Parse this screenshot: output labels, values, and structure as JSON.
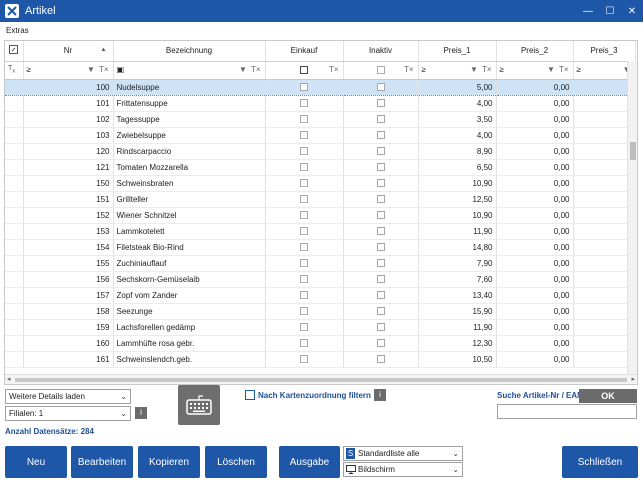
{
  "window": {
    "title": "Artikel"
  },
  "menu": {
    "extras": "Extras"
  },
  "columns": {
    "nr": "Nr",
    "bezeichnung": "Bezeichnung",
    "einkauf": "Einkauf",
    "inaktiv": "Inaktiv",
    "preis1": "Preis_1",
    "preis2": "Preis_2",
    "preis3": "Preis_3"
  },
  "filter": {
    "ge": "≥"
  },
  "rows": [
    {
      "nr": "100",
      "bez": "Nudelsuppe",
      "p1": "5,00",
      "p2": "0,00"
    },
    {
      "nr": "101",
      "bez": "Frittatensuppe",
      "p1": "4,00",
      "p2": "0,00"
    },
    {
      "nr": "102",
      "bez": "Tagessuppe",
      "p1": "3,50",
      "p2": "0,00"
    },
    {
      "nr": "103",
      "bez": "Zwiebelsuppe",
      "p1": "4,00",
      "p2": "0,00"
    },
    {
      "nr": "120",
      "bez": "Rindscarpaccio",
      "p1": "8,90",
      "p2": "0,00"
    },
    {
      "nr": "121",
      "bez": "Tomaten Mozzarella",
      "p1": "6,50",
      "p2": "0,00"
    },
    {
      "nr": "150",
      "bez": "Schweinsbraten",
      "p1": "10,90",
      "p2": "0,00"
    },
    {
      "nr": "151",
      "bez": "Grillteller",
      "p1": "12,50",
      "p2": "0,00"
    },
    {
      "nr": "152",
      "bez": "Wiener Schnitzel",
      "p1": "10,90",
      "p2": "0,00"
    },
    {
      "nr": "153",
      "bez": "Lammkotelett",
      "p1": "11,90",
      "p2": "0,00"
    },
    {
      "nr": "154",
      "bez": "Filetsteak Bio-Rind",
      "p1": "14,80",
      "p2": "0,00"
    },
    {
      "nr": "155",
      "bez": "Zuchiniauflauf",
      "p1": "7,90",
      "p2": "0,00"
    },
    {
      "nr": "156",
      "bez": "Sechskorn-Gemüselaib",
      "p1": "7,60",
      "p2": "0,00"
    },
    {
      "nr": "157",
      "bez": "Zopf vom Zander",
      "p1": "13,40",
      "p2": "0,00"
    },
    {
      "nr": "158",
      "bez": "Seezunge",
      "p1": "15,90",
      "p2": "0,00"
    },
    {
      "nr": "159",
      "bez": "Lachsforellen gedämp",
      "p1": "11,90",
      "p2": "0,00"
    },
    {
      "nr": "160",
      "bez": "Lammhüfte rosa gebr.",
      "p1": "12,30",
      "p2": "0,00"
    },
    {
      "nr": "161",
      "bez": "Schweinslendch.geb.",
      "p1": "10,50",
      "p2": "0,00"
    }
  ],
  "bottom": {
    "details_select": "Weitere Details laden",
    "filialen_select": "Filialen: 1",
    "info": "i",
    "anzahl": "Anzahl Datensätze: 284",
    "karten_filter": "Nach Kartenzuordnung filtern",
    "suche_label": "Suche Artikel-Nr / EAN",
    "ok": "OK",
    "liste_select": "Standardliste alle",
    "ausgabe_ziel": "Bildschirm"
  },
  "buttons": {
    "neu": "Neu",
    "bearbeiten": "Bearbeiten",
    "kopieren": "Kopieren",
    "loeschen": "Löschen",
    "ausgabe": "Ausgabe",
    "schliessen": "Schließen"
  },
  "colors": {
    "accent": "#1e56a8",
    "selected_row": "#cfe3f7"
  }
}
